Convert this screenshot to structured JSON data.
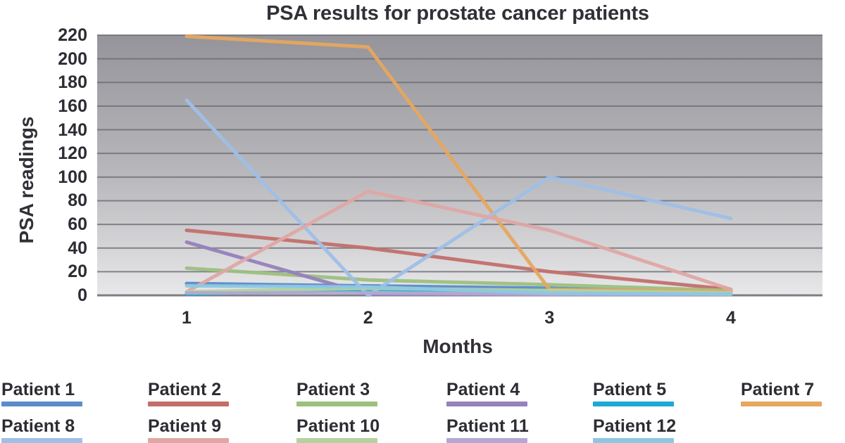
{
  "chart_data": {
    "type": "line",
    "title": "PSA results for prostate cancer patients",
    "xlabel": "Months",
    "ylabel": "PSA readings",
    "x": [
      1,
      2,
      3,
      4
    ],
    "ylim": [
      0,
      220
    ],
    "ytick_step": 20,
    "grid": true,
    "legend_position": "bottom",
    "series": [
      {
        "name": "Patient 1",
        "color": "#5b8cc8",
        "values": [
          10,
          8,
          6,
          2
        ]
      },
      {
        "name": "Patient 2",
        "color": "#c26f6b",
        "values": [
          55,
          40,
          20,
          5
        ]
      },
      {
        "name": "Patient 3",
        "color": "#9cc07f",
        "values": [
          23,
          13,
          9,
          4
        ]
      },
      {
        "name": "Patient 4",
        "color": "#9681ba",
        "values": [
          45,
          1,
          1,
          1
        ]
      },
      {
        "name": "Patient 5",
        "color": "#1ea9d5",
        "values": [
          1,
          5,
          4,
          1
        ]
      },
      {
        "name": "Patient 7",
        "color": "#e6a75f",
        "values": [
          219,
          210,
          5,
          3
        ]
      },
      {
        "name": "Patient 8",
        "color": "#9fbfe7",
        "values": [
          165,
          0,
          100,
          65
        ]
      },
      {
        "name": "Patient 9",
        "color": "#dfa7a4",
        "values": [
          3,
          88,
          55,
          5
        ]
      },
      {
        "name": "Patient 10",
        "color": "#b3d29e",
        "values": [
          3,
          6,
          4,
          2
        ]
      },
      {
        "name": "Patient 11",
        "color": "#b2a8d1",
        "values": [
          2,
          2,
          1,
          1
        ]
      },
      {
        "name": "Patient 12",
        "color": "#8ec7e1",
        "values": [
          8,
          7,
          2,
          1
        ]
      }
    ]
  }
}
